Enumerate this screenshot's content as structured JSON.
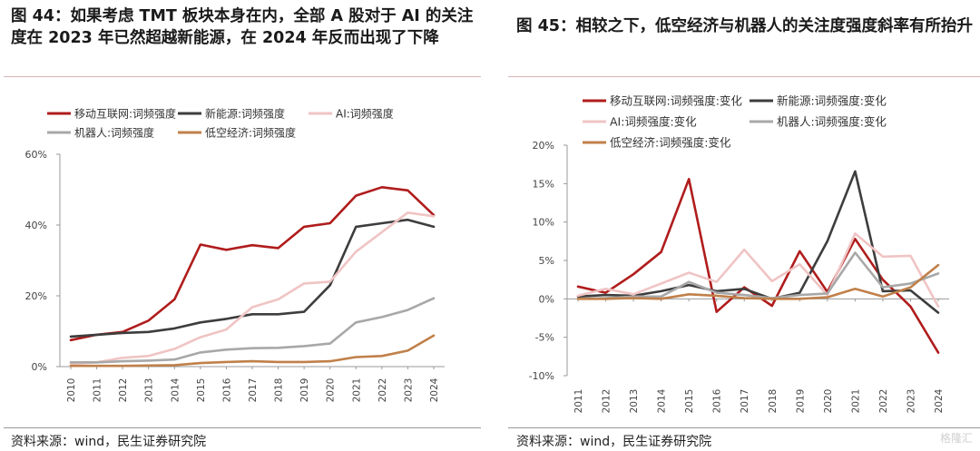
{
  "left": {
    "title": "图 44：如果考虑 TMT 板块本身在内，全部 A 股对于 AI 的关注度在 2023 年已然超越新能源，在 2024 年反而出现了下降",
    "source": "资料来源：wind，民生证券研究院"
  },
  "right": {
    "title": "图 45：相较之下，低空经济与机器人的关注度强度斜率有所抬升",
    "source": "资料来源：wind，民生证券研究院"
  },
  "watermark": "格隆汇",
  "chart_data": [
    {
      "type": "line",
      "title": "图 44：如果考虑 TMT 板块本身在内，全部 A 股对于 AI 的关注度在 2023 年已然超越新能源，在 2024 年反而出现了下降",
      "x": [
        "2010",
        "2011",
        "2012",
        "2013",
        "2014",
        "2015",
        "2016",
        "2017",
        "2018",
        "2019",
        "2020",
        "2021",
        "2022",
        "2023",
        "2024"
      ],
      "ylim": [
        0,
        60
      ],
      "yticks": [
        "0%",
        "20%",
        "40%",
        "60%"
      ],
      "ytick_values": [
        0,
        20,
        40,
        60
      ],
      "grid": false,
      "legend_position": "top",
      "series": [
        {
          "name": "移动互联网:词频强度",
          "color": "#b01c1c",
          "values": [
            7.5,
            9.0,
            9.8,
            13.0,
            19.0,
            34.5,
            33.0,
            34.3,
            33.5,
            39.5,
            40.5,
            48.3,
            50.7,
            49.8,
            42.8
          ]
        },
        {
          "name": "新能源:词频强度",
          "color": "#3d3d3d",
          "values": [
            8.5,
            9.0,
            9.5,
            9.8,
            10.8,
            12.5,
            13.5,
            14.8,
            14.8,
            15.5,
            23.0,
            39.5,
            40.5,
            41.5,
            39.5
          ]
        },
        {
          "name": "AI:词频强度",
          "color": "#f0c4c4",
          "values": [
            0.8,
            1.2,
            2.5,
            3.0,
            5.0,
            8.3,
            10.5,
            16.8,
            19.0,
            23.5,
            24.0,
            32.5,
            38.0,
            43.5,
            42.5
          ]
        },
        {
          "name": "机器人:词频强度",
          "color": "#a8a8a8",
          "values": [
            1.2,
            1.2,
            1.5,
            1.7,
            2.0,
            4.0,
            4.8,
            5.2,
            5.3,
            5.8,
            6.5,
            12.5,
            14.0,
            16.0,
            19.3
          ]
        },
        {
          "name": "低空经济:词频强度",
          "color": "#c0804a",
          "values": [
            0.2,
            0.2,
            0.2,
            0.3,
            0.4,
            1.0,
            1.3,
            1.5,
            1.3,
            1.3,
            1.5,
            2.7,
            3.0,
            4.5,
            8.8
          ]
        }
      ]
    },
    {
      "type": "line",
      "title": "图 45：相较之下，低空经济与机器人的关注度强度斜率有所抬升",
      "x": [
        "2011",
        "2012",
        "2013",
        "2014",
        "2015",
        "2016",
        "2017",
        "2018",
        "2019",
        "2020",
        "2021",
        "2022",
        "2023",
        "2024"
      ],
      "ylim": [
        -10,
        20
      ],
      "yticks": [
        "-10%",
        "-5%",
        "0%",
        "5%",
        "10%",
        "15%",
        "20%"
      ],
      "ytick_values": [
        -10,
        -5,
        0,
        5,
        10,
        15,
        20
      ],
      "grid": false,
      "legend_position": "top",
      "series": [
        {
          "name": "移动互联网:词频强度:变化",
          "color": "#b01c1c",
          "values": [
            1.6,
            0.8,
            3.2,
            6.1,
            15.6,
            -1.7,
            1.5,
            -0.9,
            6.2,
            0.9,
            7.8,
            2.5,
            -1.0,
            -7.0
          ]
        },
        {
          "name": "新能源:词频强度:变化",
          "color": "#3d3d3d",
          "values": [
            0.3,
            0.5,
            0.4,
            1.0,
            1.8,
            1.0,
            1.3,
            0.0,
            0.8,
            7.5,
            16.6,
            1.0,
            1.1,
            -1.8
          ]
        },
        {
          "name": "AI:词频强度:变化",
          "color": "#f0c4c4",
          "values": [
            0.4,
            1.3,
            0.6,
            2.0,
            3.4,
            2.2,
            6.4,
            2.3,
            4.5,
            0.5,
            8.5,
            5.5,
            5.6,
            -1.0
          ]
        },
        {
          "name": "机器人:词频强度:变化",
          "color": "#a8a8a8",
          "values": [
            0.0,
            0.1,
            0.3,
            0.3,
            2.2,
            0.8,
            0.5,
            0.1,
            0.5,
            0.7,
            6.0,
            1.5,
            2.0,
            3.3
          ]
        },
        {
          "name": "低空经济:词频强度:变化",
          "color": "#c0804a",
          "values": [
            0.0,
            0.0,
            0.1,
            0.0,
            0.6,
            0.4,
            0.1,
            0.0,
            0.0,
            0.2,
            1.3,
            0.3,
            1.5,
            4.4
          ]
        }
      ]
    }
  ]
}
